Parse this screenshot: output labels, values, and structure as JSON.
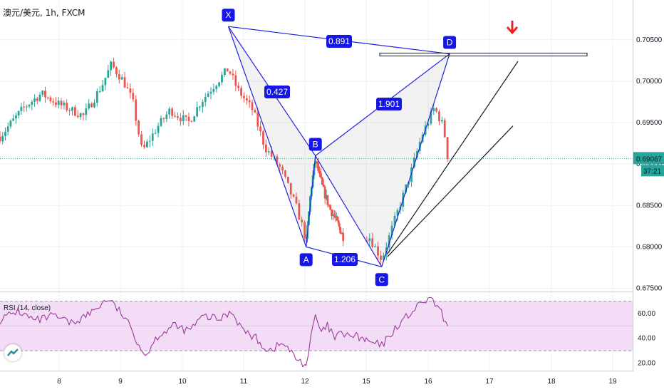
{
  "header": {
    "title": "澳元/美元, 1h, FXCM"
  },
  "colors": {
    "up": "#26a69a",
    "down": "#ef5350",
    "pattern": "#1e22e0",
    "label_bg": "#1616e6",
    "price_tag": "#26a69a",
    "rsi_line": "#9c3a9c",
    "rsi_band": "#f3dcf6",
    "arrow": "#e8251f"
  },
  "chart_data": [
    {
      "type": "candlestick",
      "title": "",
      "x_ticks": [
        "8",
        "9",
        "10",
        "11",
        "12",
        "15",
        "16",
        "17",
        "18",
        "19"
      ],
      "y_ticks": [
        "0.70500",
        "0.70000",
        "0.69500",
        "0.69000",
        "0.68500",
        "0.68000",
        "0.67500"
      ],
      "ylim": [
        0.6747,
        0.7098
      ],
      "last_price": "0.69067",
      "countdown": "37:21",
      "pattern_points": [
        {
          "label": "X",
          "x": 10.75,
          "y": 0.7066
        },
        {
          "label": "A",
          "x": 12.04,
          "y": 0.68
        },
        {
          "label": "B",
          "x": 12.35,
          "y": 0.691
        },
        {
          "label": "C",
          "x": 15.25,
          "y": 0.6776
        },
        {
          "label": "D",
          "x": 16.35,
          "y": 0.7033
        }
      ],
      "ratios": [
        {
          "text": "0.891",
          "between": [
            "X",
            "D"
          ]
        },
        {
          "text": "0.427",
          "between": [
            "X",
            "B"
          ]
        },
        {
          "text": "1.901",
          "between": [
            "B",
            "D"
          ]
        },
        {
          "text": "1.206",
          "between": [
            "A",
            "C"
          ]
        }
      ],
      "price_segments": [
        {
          "x": 7.0,
          "y": 0.6933
        },
        {
          "x": 7.4,
          "y": 0.6968
        },
        {
          "x": 7.7,
          "y": 0.6985
        },
        {
          "x": 8.0,
          "y": 0.6972
        },
        {
          "x": 8.4,
          "y": 0.6958
        },
        {
          "x": 8.7,
          "y": 0.6995
        },
        {
          "x": 8.85,
          "y": 0.702
        },
        {
          "x": 9.05,
          "y": 0.7
        },
        {
          "x": 9.2,
          "y": 0.6975
        },
        {
          "x": 9.35,
          "y": 0.6915
        },
        {
          "x": 9.6,
          "y": 0.6945
        },
        {
          "x": 9.8,
          "y": 0.6965
        },
        {
          "x": 10.1,
          "y": 0.695
        },
        {
          "x": 10.3,
          "y": 0.6975
        },
        {
          "x": 10.55,
          "y": 0.6998
        },
        {
          "x": 10.75,
          "y": 0.7015
        },
        {
          "x": 10.9,
          "y": 0.699
        },
        {
          "x": 11.15,
          "y": 0.6965
        },
        {
          "x": 11.35,
          "y": 0.692
        },
        {
          "x": 11.6,
          "y": 0.6895
        },
        {
          "x": 11.85,
          "y": 0.685
        },
        {
          "x": 12.04,
          "y": 0.6805
        },
        {
          "x": 12.2,
          "y": 0.687
        },
        {
          "x": 12.35,
          "y": 0.6905
        },
        {
          "x": 12.6,
          "y": 0.687
        },
        {
          "x": 12.85,
          "y": 0.6845
        },
        {
          "x": 13.1,
          "y": 0.683
        },
        {
          "x": 13.4,
          "y": 0.6812
        },
        {
          "x": 15.05,
          "y": 0.6812
        },
        {
          "x": 15.25,
          "y": 0.6785
        },
        {
          "x": 15.45,
          "y": 0.683
        },
        {
          "x": 15.7,
          "y": 0.6885
        },
        {
          "x": 15.9,
          "y": 0.6935
        },
        {
          "x": 16.1,
          "y": 0.6968
        },
        {
          "x": 16.25,
          "y": 0.6945
        },
        {
          "x": 16.32,
          "y": 0.6907
        }
      ],
      "annotations": [
        "horizontal resistance zone at D",
        "two trend lines rising from C",
        "red down arrow above D"
      ]
    },
    {
      "type": "line",
      "title": "RSI (14, close)",
      "y_ticks": [
        "60.00",
        "40.00",
        "20.00"
      ],
      "ylim": [
        14,
        76
      ],
      "band": [
        30,
        70
      ],
      "points": [
        {
          "x": 7.0,
          "y": 55
        },
        {
          "x": 7.3,
          "y": 62
        },
        {
          "x": 7.6,
          "y": 54
        },
        {
          "x": 7.9,
          "y": 58
        },
        {
          "x": 8.2,
          "y": 52
        },
        {
          "x": 8.5,
          "y": 60
        },
        {
          "x": 8.8,
          "y": 72
        },
        {
          "x": 9.05,
          "y": 58
        },
        {
          "x": 9.2,
          "y": 45
        },
        {
          "x": 9.4,
          "y": 26
        },
        {
          "x": 9.6,
          "y": 42
        },
        {
          "x": 9.85,
          "y": 50
        },
        {
          "x": 10.1,
          "y": 46
        },
        {
          "x": 10.35,
          "y": 58
        },
        {
          "x": 10.6,
          "y": 55
        },
        {
          "x": 10.8,
          "y": 62
        },
        {
          "x": 11.0,
          "y": 46
        },
        {
          "x": 11.2,
          "y": 40
        },
        {
          "x": 11.4,
          "y": 30
        },
        {
          "x": 11.65,
          "y": 36
        },
        {
          "x": 11.85,
          "y": 24
        },
        {
          "x": 12.04,
          "y": 18
        },
        {
          "x": 12.2,
          "y": 40
        },
        {
          "x": 12.35,
          "y": 58
        },
        {
          "x": 12.55,
          "y": 44
        },
        {
          "x": 12.75,
          "y": 50
        },
        {
          "x": 13.0,
          "y": 40
        },
        {
          "x": 13.3,
          "y": 44
        },
        {
          "x": 15.0,
          "y": 38
        },
        {
          "x": 15.25,
          "y": 34
        },
        {
          "x": 15.5,
          "y": 50
        },
        {
          "x": 15.75,
          "y": 62
        },
        {
          "x": 16.0,
          "y": 72
        },
        {
          "x": 16.15,
          "y": 66
        },
        {
          "x": 16.32,
          "y": 50
        }
      ]
    }
  ]
}
